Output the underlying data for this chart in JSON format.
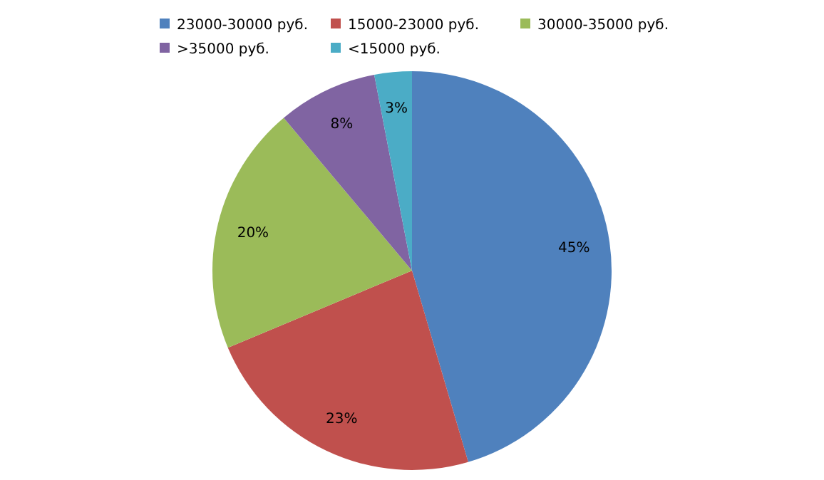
{
  "chart_data": {
    "type": "pie",
    "categories": [
      "23000-30000 руб.",
      "15000-23000 руб.",
      "30000-35000 руб.",
      ">35000 руб.",
      "<15000 руб."
    ],
    "values": [
      45,
      23,
      20,
      8,
      3
    ],
    "colors": [
      "#4f81bd",
      "#c0504d",
      "#9bbb59",
      "#8064a2",
      "#4bacc6"
    ],
    "value_labels": [
      "45%",
      "23%",
      "20%",
      "8%",
      "3%"
    ],
    "legend": "top"
  }
}
